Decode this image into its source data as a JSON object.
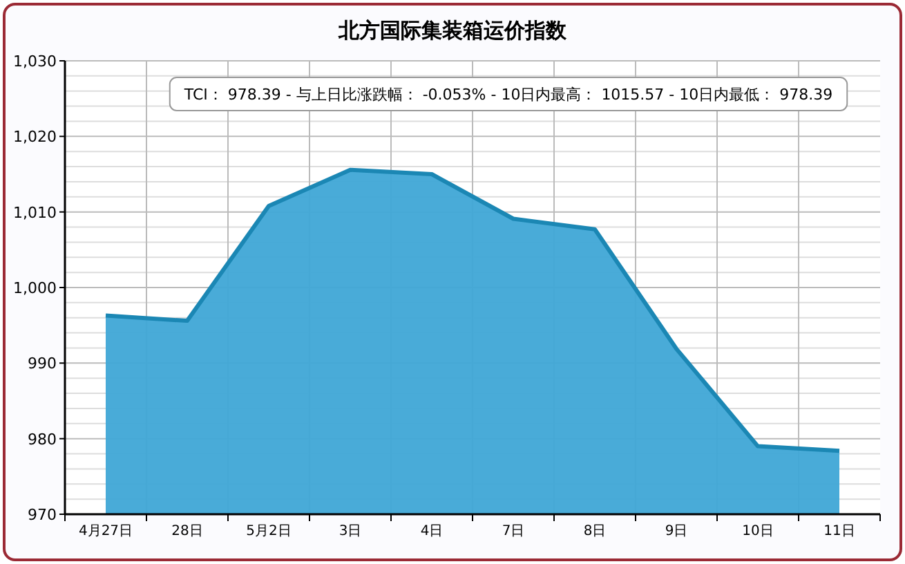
{
  "chart_data": {
    "type": "area",
    "title": "北方国际集装箱运价指数",
    "categories": [
      "4月27日",
      "28日",
      "5月2日",
      "3日",
      "4日",
      "7日",
      "8日",
      "9日",
      "10日",
      "11日"
    ],
    "series": [
      {
        "color": "#3fa7d6",
        "values": [
          996.3,
          995.6,
          1010.8,
          1015.57,
          1015.0,
          1009.1,
          1007.7,
          991.9,
          979.0,
          978.39
        ]
      }
    ],
    "ylim": [
      970,
      1030
    ],
    "yticks": [
      {
        "value": 970,
        "label": "970"
      },
      {
        "value": 972,
        "label": null
      },
      {
        "value": 974,
        "label": null
      },
      {
        "value": 976,
        "label": null
      },
      {
        "value": 978,
        "label": null
      },
      {
        "value": 980,
        "label": "980"
      },
      {
        "value": 982,
        "label": null
      },
      {
        "value": 984,
        "label": null
      },
      {
        "value": 986,
        "label": null
      },
      {
        "value": 988,
        "label": null
      },
      {
        "value": 990,
        "label": "990"
      },
      {
        "value": 992,
        "label": null
      },
      {
        "value": 994,
        "label": null
      },
      {
        "value": 996,
        "label": null
      },
      {
        "value": 998,
        "label": null
      },
      {
        "value": 1000,
        "label": "1,000"
      },
      {
        "value": 1002,
        "label": null
      },
      {
        "value": 1004,
        "label": null
      },
      {
        "value": 1006,
        "label": null
      },
      {
        "value": 1008,
        "label": null
      },
      {
        "value": 1010,
        "label": "1,010"
      },
      {
        "value": 1012,
        "label": null
      },
      {
        "value": 1014,
        "label": null
      },
      {
        "value": 1016,
        "label": null
      },
      {
        "value": 1018,
        "label": null
      },
      {
        "value": 1020,
        "label": "1,020"
      },
      {
        "value": 1022,
        "label": null
      },
      {
        "value": 1024,
        "label": null
      },
      {
        "value": 1026,
        "label": null
      },
      {
        "value": 1028,
        "label": null
      },
      {
        "value": 1030,
        "label": "1,030"
      }
    ],
    "grid": true,
    "annotations": [
      "TCI： 978.39  - 与上日比涨跌幅： -0.053%  - 10日内最高： 1015.57  - 10日内最低： 978.39"
    ]
  }
}
